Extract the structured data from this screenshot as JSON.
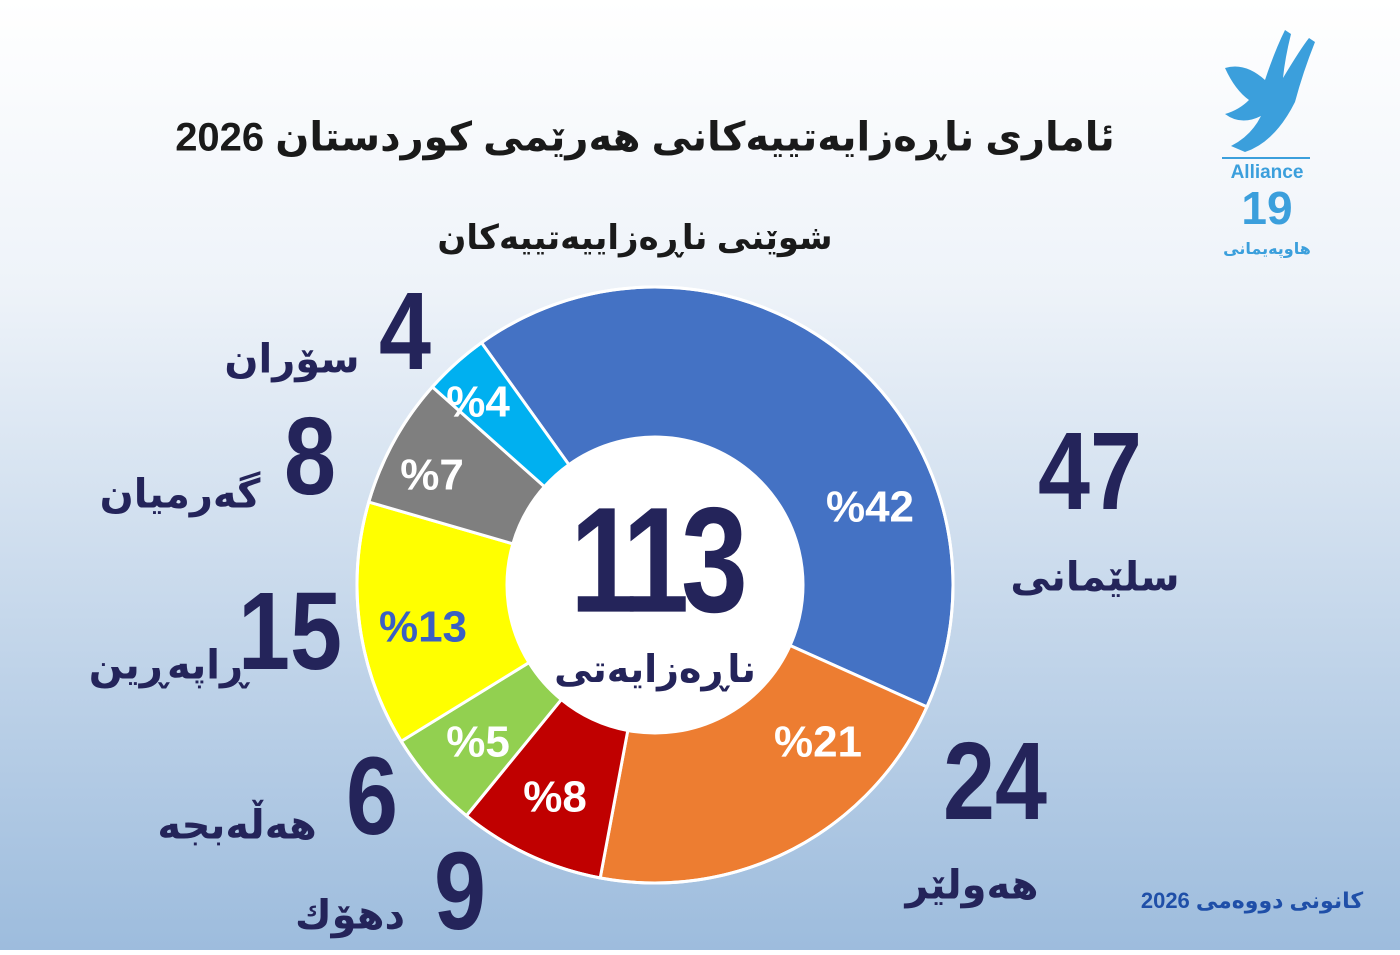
{
  "chart_data": {
    "type": "donut",
    "title": "ئاماری ناڕەزایەتییەکانی هەرێمی کوردستان 2026",
    "subtitle": "شوێنی ناڕەزاییەتییەکان",
    "total": 113,
    "total_label": "ناڕەزایەتی",
    "categories": [
      "سلێمانی",
      "هەولێر",
      "دهۆك",
      "هەڵەبجە",
      "ڕاپەڕین",
      "گەرمیان",
      "سۆران"
    ],
    "values": [
      47,
      24,
      9,
      6,
      15,
      8,
      4
    ],
    "percents": [
      {
        "value": 42,
        "label": "%42"
      },
      {
        "value": 21,
        "label": "%21"
      },
      {
        "value": 8,
        "label": "%8"
      },
      {
        "value": 5,
        "label": "%5"
      },
      {
        "value": 13,
        "label": "%13"
      },
      {
        "value": 7,
        "label": "%7"
      },
      {
        "value": 4,
        "label": "%4"
      }
    ],
    "colors": [
      "#4472c4",
      "#ed7d31",
      "#c00000",
      "#92d050",
      "#ffff00",
      "#7f7f7f",
      "#00b0f0"
    ],
    "date": "کانونی دووەمی 2026"
  },
  "logo": {
    "name": "Alliance",
    "number": "19",
    "subtitle": "هاوپەیمانی"
  }
}
